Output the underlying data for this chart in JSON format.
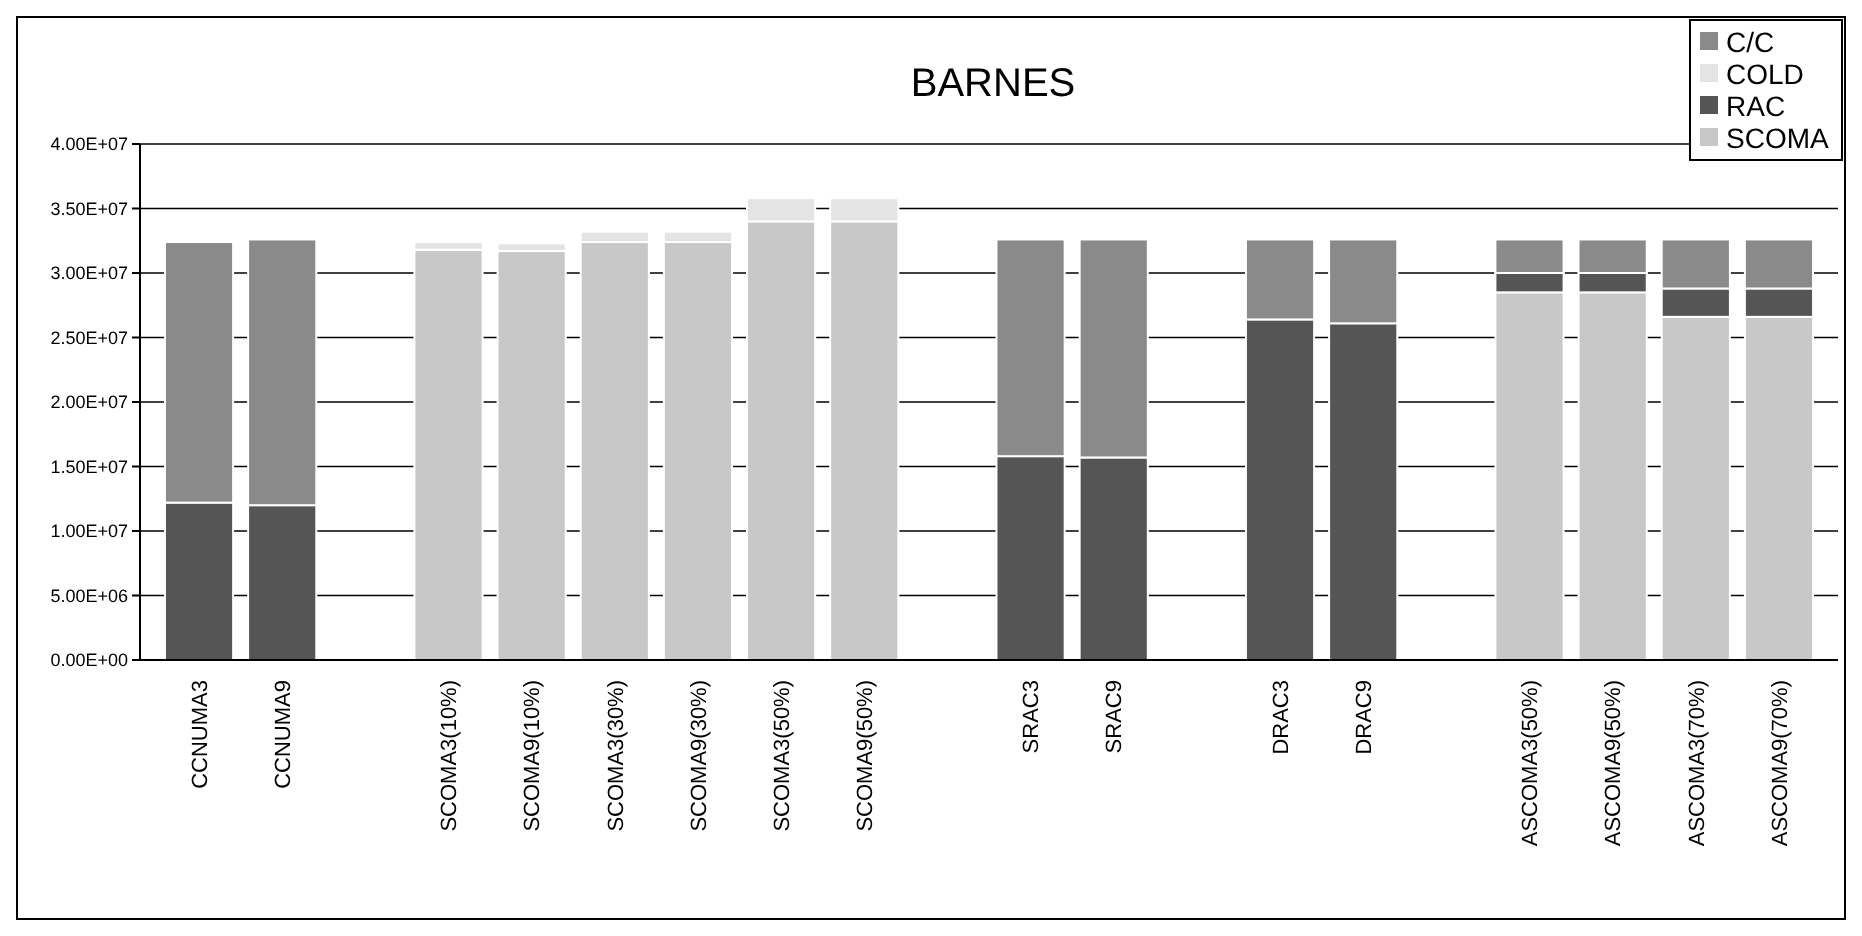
{
  "chart_data": {
    "type": "bar",
    "title": "BARNES",
    "stacked": true,
    "categories": [
      "CCNUMA3",
      "CCNUMA9",
      null,
      "SCOMA3(10%)",
      "SCOMA9(10%)",
      "SCOMA3(30%)",
      "SCOMA9(30%)",
      "SCOMA3(50%)",
      "SCOMA9(50%)",
      null,
      "SRAC3",
      "SRAC9",
      null,
      "DRAC3",
      "DRAC9",
      null,
      "ASCOMA3(50%)",
      "ASCOMA9(50%)",
      "ASCOMA3(70%)",
      "ASCOMA9(70%)"
    ],
    "series": [
      {
        "name": "SCOMA",
        "color": "#c8c8c8",
        "values": [
          null,
          null,
          null,
          31800000,
          31700000,
          32400000,
          32400000,
          34000000,
          34000000,
          null,
          null,
          null,
          null,
          null,
          null,
          null,
          28500000,
          28500000,
          26600000,
          26600000
        ]
      },
      {
        "name": "RAC",
        "color": "#555555",
        "values": [
          12200000,
          12000000,
          null,
          null,
          null,
          null,
          null,
          null,
          null,
          null,
          15800000,
          15700000,
          null,
          26400000,
          26100000,
          null,
          1500000,
          1500000,
          2200000,
          2200000
        ]
      },
      {
        "name": "COLD",
        "color": "#e4e4e4",
        "values": [
          null,
          null,
          null,
          600000,
          600000,
          800000,
          800000,
          1800000,
          1800000,
          null,
          null,
          null,
          null,
          null,
          null,
          null,
          null,
          null,
          null,
          null
        ]
      },
      {
        "name": "C/C",
        "color": "#8a8a8a",
        "values": [
          20200000,
          20600000,
          null,
          null,
          null,
          null,
          null,
          null,
          null,
          null,
          16800000,
          16900000,
          null,
          6200000,
          6500000,
          null,
          2600000,
          2600000,
          3800000,
          3800000
        ]
      }
    ],
    "ylim": [
      0,
      40000000
    ],
    "yticks": [
      {
        "value": 0,
        "label": "0.00E+00"
      },
      {
        "value": 5000000,
        "label": "5.00E+06"
      },
      {
        "value": 10000000,
        "label": "1.00E+07"
      },
      {
        "value": 15000000,
        "label": "1.50E+07"
      },
      {
        "value": 20000000,
        "label": "2.00E+07"
      },
      {
        "value": 25000000,
        "label": "2.50E+07"
      },
      {
        "value": 30000000,
        "label": "3.00E+07"
      },
      {
        "value": 35000000,
        "label": "3.50E+07"
      },
      {
        "value": 40000000,
        "label": "4.00E+07"
      }
    ],
    "grid": "y",
    "legend": "top right"
  }
}
